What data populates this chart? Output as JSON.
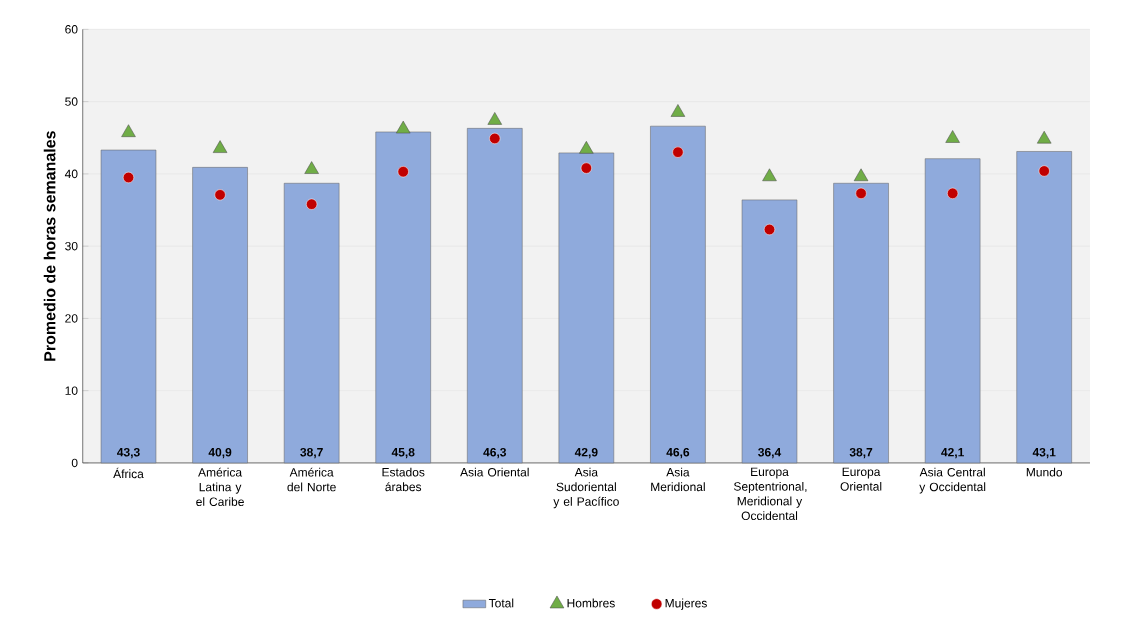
{
  "chart_data": {
    "type": "bar",
    "ylabel": "Promedio de horas semanales",
    "categories": [
      "África",
      "América Latina y el Caribe",
      "América del Norte",
      "Estados árabes",
      "Asia Oriental",
      "Asia Sudoriental y el Pacífico",
      "Asia Meridional",
      "Europa Septentrional, Meridional y Occidental",
      "Europa Oriental",
      "Asia Central y Occidental",
      "Mundo"
    ],
    "series": [
      {
        "name": "Total",
        "color": "#8faadc",
        "values": [
          43.3,
          40.9,
          38.7,
          45.8,
          46.3,
          42.9,
          46.6,
          36.4,
          38.7,
          42.1,
          43.1
        ],
        "value_labels": [
          "43,3",
          "40,9",
          "38,7",
          "45,8",
          "46,3",
          "42,9",
          "46,6",
          "36,4",
          "38,7",
          "42,1",
          "43,1"
        ]
      },
      {
        "name": "Hombres",
        "type": "scatter",
        "marker": "triangle",
        "color": "#70ad47",
        "values": [
          45.7,
          43.5,
          40.6,
          46.2,
          47.4,
          43.4,
          48.5,
          39.6,
          39.6,
          44.9,
          44.8
        ]
      },
      {
        "name": "Mujeres",
        "type": "scatter",
        "marker": "circle",
        "color": "#c00000",
        "values": [
          39.5,
          37.1,
          35.8,
          40.3,
          44.9,
          40.8,
          43.0,
          32.3,
          37.3,
          37.3,
          40.4
        ]
      }
    ],
    "ylim": [
      0,
      60
    ],
    "yticks": [
      0,
      10,
      20,
      30,
      40,
      50,
      60
    ],
    "grid": "y",
    "legend": "bottom"
  }
}
